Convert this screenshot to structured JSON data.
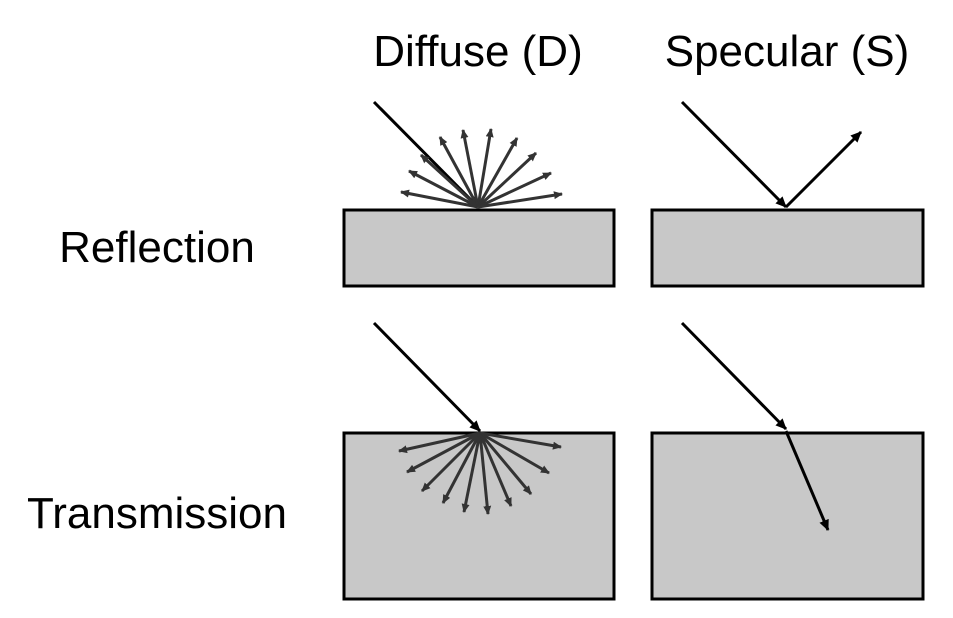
{
  "columns": {
    "diffuse": "Diffuse (D)",
    "specular": "Specular (S)"
  },
  "rows": {
    "reflection": "Reflection",
    "transmission": "Transmission"
  },
  "colors": {
    "surface_fill": "#c8c8c8",
    "surface_stroke": "#000000",
    "incident_ray": "#000000",
    "scattered_ray": "#333333"
  }
}
